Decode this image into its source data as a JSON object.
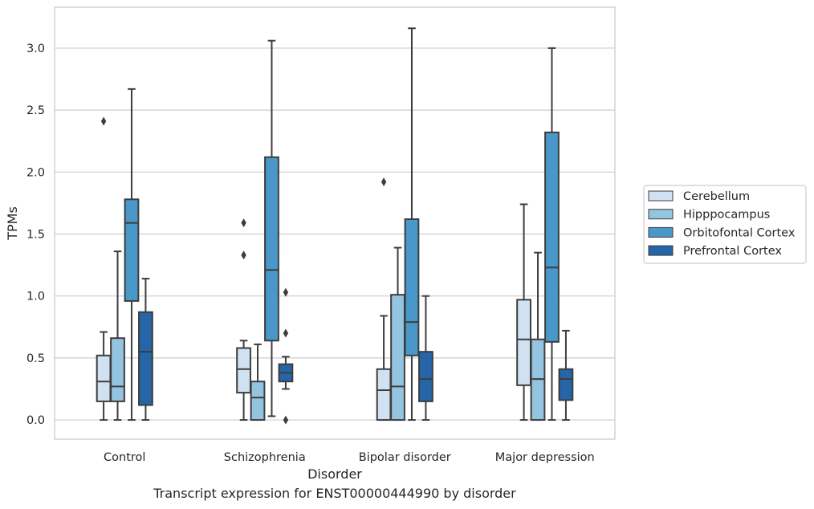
{
  "chart_data": {
    "type": "box",
    "title": "",
    "caption": "Transcript expression for ENST00000444990 by disorder",
    "xlabel": "Disorder",
    "ylabel": "TPMs",
    "ylim": [
      -0.155,
      3.33
    ],
    "yticks": [
      0.0,
      0.5,
      1.0,
      1.5,
      2.0,
      2.5,
      3.0
    ],
    "ytick_labels": [
      "0.0",
      "0.5",
      "1.0",
      "1.5",
      "2.0",
      "2.5",
      "3.0"
    ],
    "grid": "horizontal",
    "legend_position": "right",
    "categories": [
      "Control",
      "Schizophrenia",
      "Bipolar disorder",
      "Major depression"
    ],
    "series": [
      {
        "name": "Cerebellum",
        "color": "#d0e1f2",
        "boxes": [
          {
            "whisker_low": 0.0,
            "q1": 0.15,
            "median": 0.31,
            "q3": 0.52,
            "whisker_high": 0.71,
            "outliers": [
              2.41
            ]
          },
          {
            "whisker_low": 0.0,
            "q1": 0.22,
            "median": 0.41,
            "q3": 0.58,
            "whisker_high": 0.64,
            "outliers": [
              1.33,
              1.59
            ]
          },
          {
            "whisker_low": 0.0,
            "q1": 0.0,
            "median": 0.24,
            "q3": 0.41,
            "whisker_high": 0.84,
            "outliers": [
              1.92
            ]
          },
          {
            "whisker_low": 0.0,
            "q1": 0.28,
            "median": 0.65,
            "q3": 0.97,
            "whisker_high": 1.74,
            "outliers": []
          }
        ]
      },
      {
        "name": "Hipppocampus",
        "color": "#94c4df",
        "boxes": [
          {
            "whisker_low": 0.0,
            "q1": 0.15,
            "median": 0.27,
            "q3": 0.66,
            "whisker_high": 1.36,
            "outliers": []
          },
          {
            "whisker_low": 0.0,
            "q1": 0.0,
            "median": 0.18,
            "q3": 0.31,
            "whisker_high": 0.61,
            "outliers": []
          },
          {
            "whisker_low": 0.0,
            "q1": 0.0,
            "median": 0.27,
            "q3": 1.01,
            "whisker_high": 1.39,
            "outliers": []
          },
          {
            "whisker_low": 0.0,
            "q1": 0.0,
            "median": 0.33,
            "q3": 0.65,
            "whisker_high": 1.35,
            "outliers": []
          }
        ]
      },
      {
        "name": "Orbitofontal Cortex",
        "color": "#4a98c9",
        "boxes": [
          {
            "whisker_low": 0.0,
            "q1": 0.96,
            "median": 1.59,
            "q3": 1.78,
            "whisker_high": 2.67,
            "outliers": []
          },
          {
            "whisker_low": 0.03,
            "q1": 0.64,
            "median": 1.21,
            "q3": 2.12,
            "whisker_high": 3.06,
            "outliers": []
          },
          {
            "whisker_low": 0.0,
            "q1": 0.52,
            "median": 0.79,
            "q3": 1.62,
            "whisker_high": 3.16,
            "outliers": []
          },
          {
            "whisker_low": 0.0,
            "q1": 0.63,
            "median": 1.23,
            "q3": 2.32,
            "whisker_high": 3.0,
            "outliers": []
          }
        ]
      },
      {
        "name": "Prefrontal Cortex",
        "color": "#2666a8",
        "boxes": [
          {
            "whisker_low": 0.0,
            "q1": 0.12,
            "median": 0.55,
            "q3": 0.87,
            "whisker_high": 1.14,
            "outliers": []
          },
          {
            "whisker_low": 0.25,
            "q1": 0.31,
            "median": 0.38,
            "q3": 0.45,
            "whisker_high": 0.51,
            "outliers": [
              0.0,
              0.7,
              1.03
            ]
          },
          {
            "whisker_low": 0.0,
            "q1": 0.15,
            "median": 0.33,
            "q3": 0.55,
            "whisker_high": 1.0,
            "outliers": []
          },
          {
            "whisker_low": 0.0,
            "q1": 0.16,
            "median": 0.33,
            "q3": 0.41,
            "whisker_high": 0.72,
            "outliers": []
          }
        ]
      }
    ]
  }
}
